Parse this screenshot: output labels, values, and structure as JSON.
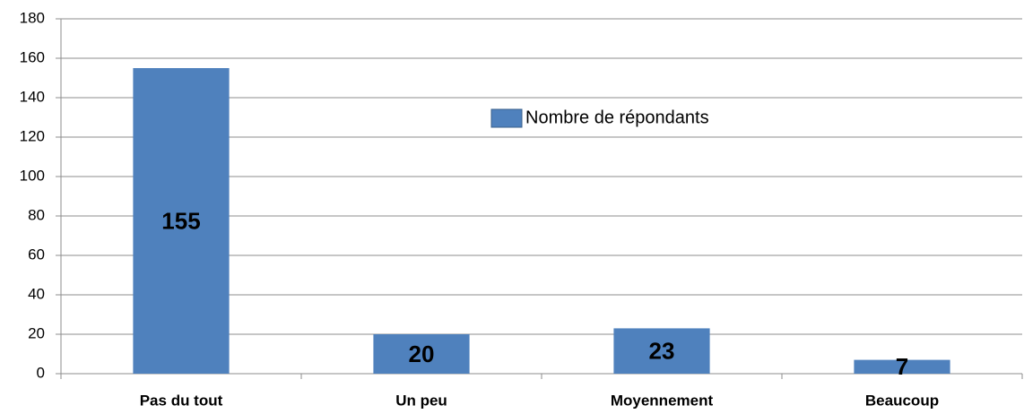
{
  "chart_data": {
    "type": "bar",
    "categories": [
      "Pas du tout",
      "Un peu",
      "Moyennement",
      "Beaucoup"
    ],
    "series": [
      {
        "name": "Nombre de répondants",
        "color": "#4f81bd",
        "values": [
          155,
          20,
          23,
          7
        ]
      }
    ],
    "ylim": [
      0,
      180
    ],
    "yticks": [
      0,
      20,
      40,
      60,
      80,
      100,
      120,
      140,
      160,
      180
    ],
    "grid": true,
    "legend": "top-center"
  }
}
